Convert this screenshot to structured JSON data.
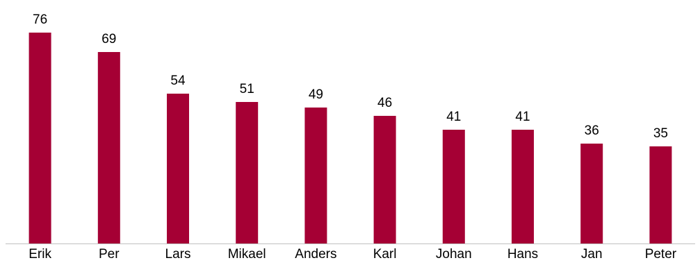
{
  "chart_data": {
    "type": "bar",
    "categories": [
      "Erik",
      "Per",
      "Lars",
      "Mikael",
      "Anders",
      "Karl",
      "Johan",
      "Hans",
      "Jan",
      "Peter"
    ],
    "values": [
      76,
      69,
      54,
      51,
      49,
      46,
      41,
      41,
      36,
      35
    ],
    "title": "",
    "xlabel": "",
    "ylabel": "",
    "ylim": [
      0,
      80
    ],
    "grid": false,
    "legend": "none",
    "data_labels": true,
    "bar_color": "#a50034",
    "axis_color": "#bfbfbf"
  }
}
